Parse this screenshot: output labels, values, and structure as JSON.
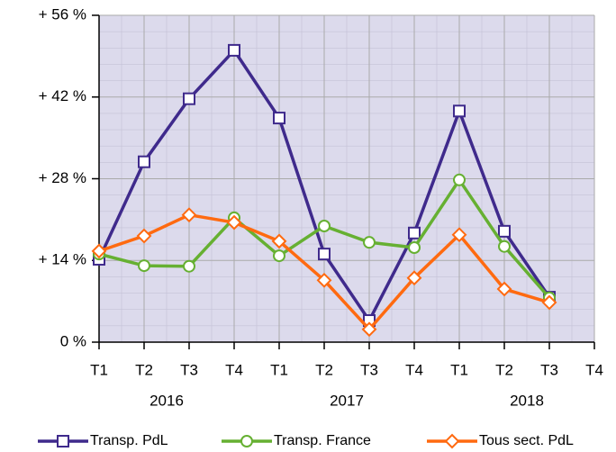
{
  "chart_data": {
    "type": "line",
    "categories": [
      "T1",
      "T2",
      "T3",
      "T4",
      "T1",
      "T2",
      "T3",
      "T4",
      "T1",
      "T2",
      "T3",
      "T4"
    ],
    "year_labels": [
      "2016",
      "2017",
      "2018"
    ],
    "series": [
      {
        "name": "Transp. PdL",
        "color": "#3f2a8c",
        "marker": "square",
        "values": [
          14.2,
          30.9,
          41.7,
          50.0,
          38.4,
          15.1,
          3.7,
          18.7,
          39.6,
          19.0,
          7.7,
          null
        ]
      },
      {
        "name": "Transp. France",
        "color": "#66b032",
        "marker": "circle",
        "values": [
          15.1,
          13.1,
          13.0,
          21.3,
          14.8,
          19.9,
          17.1,
          16.2,
          27.8,
          16.4,
          7.6,
          null
        ]
      },
      {
        "name": "Tous sect. PdL",
        "color": "#ff6a10",
        "marker": "diamond",
        "values": [
          15.6,
          18.2,
          21.8,
          20.5,
          17.3,
          10.6,
          2.2,
          11.0,
          18.4,
          9.1,
          6.8,
          null
        ]
      }
    ],
    "ylim": [
      0,
      56
    ],
    "yticks": [
      {
        "value": 0,
        "label": "0 %"
      },
      {
        "value": 14,
        "label": "+ 14 %"
      },
      {
        "value": 28,
        "label": "+ 28 %"
      },
      {
        "value": 42,
        "label": "+ 42 %"
      },
      {
        "value": 56,
        "label": "+ 56 %"
      }
    ],
    "grid": true,
    "legend": "bottom"
  }
}
